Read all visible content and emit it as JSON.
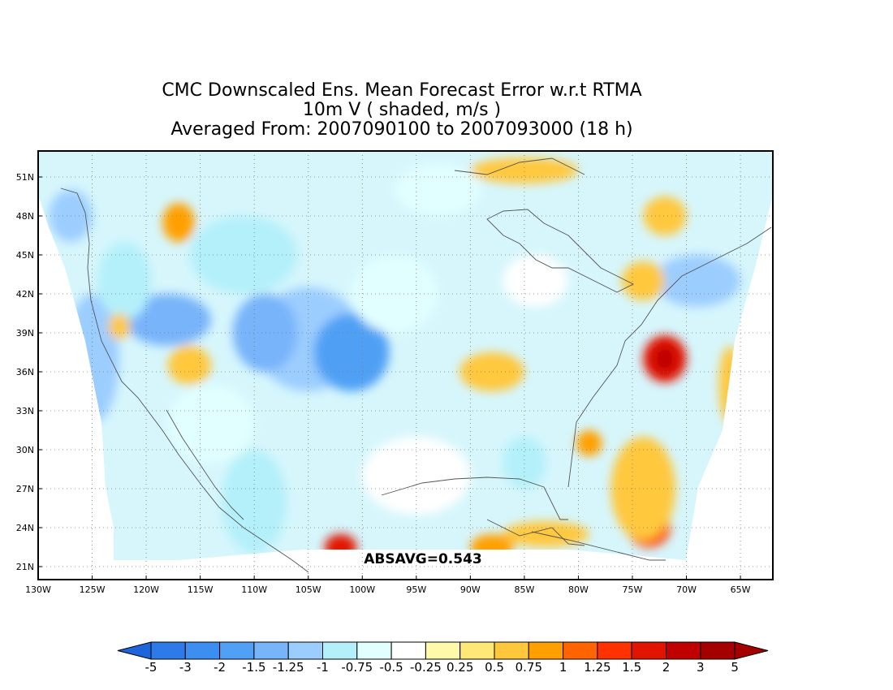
{
  "title": {
    "line1": "CMC Downscaled Ens. Mean Forecast Error w.r.t RTMA",
    "line2": "10m V ( shaded, m/s )",
    "line3": "Averaged From: 2007090100 to 2007093000 (18 h)"
  },
  "stat_label": "ABSAVG=0.543",
  "chart_data": {
    "type": "heatmap",
    "projection": "lat-lon",
    "xlim": [
      -130,
      -62
    ],
    "ylim": [
      20,
      53
    ],
    "grid": true,
    "grid_style": "dotted",
    "lon_ticks": [
      {
        "lon": -130,
        "label": "130W"
      },
      {
        "lon": -125,
        "label": "125W"
      },
      {
        "lon": -120,
        "label": "120W"
      },
      {
        "lon": -115,
        "label": "115W"
      },
      {
        "lon": -110,
        "label": "110W"
      },
      {
        "lon": -105,
        "label": "105W"
      },
      {
        "lon": -100,
        "label": "100W"
      },
      {
        "lon": -95,
        "label": "95W"
      },
      {
        "lon": -90,
        "label": "90W"
      },
      {
        "lon": -85,
        "label": "85W"
      },
      {
        "lon": -80,
        "label": "80W"
      },
      {
        "lon": -75,
        "label": "75W"
      },
      {
        "lon": -70,
        "label": "70W"
      },
      {
        "lon": -65,
        "label": "65W"
      }
    ],
    "lat_ticks": [
      {
        "lat": 21,
        "label": "21N"
      },
      {
        "lat": 24,
        "label": "24N"
      },
      {
        "lat": 27,
        "label": "27N"
      },
      {
        "lat": 30,
        "label": "30N"
      },
      {
        "lat": 33,
        "label": "33N"
      },
      {
        "lat": 36,
        "label": "36N"
      },
      {
        "lat": 39,
        "label": "39N"
      },
      {
        "lat": 42,
        "label": "42N"
      },
      {
        "lat": 45,
        "label": "45N"
      },
      {
        "lat": 48,
        "label": "48N"
      },
      {
        "lat": 51,
        "label": "51N"
      }
    ],
    "colorbar": {
      "levels": [
        "-5",
        "-3",
        "-2",
        "-1.5",
        "-1.25",
        "-1",
        "-0.75",
        "-0.5",
        "-0.25",
        "0.25",
        "0.5",
        "0.75",
        "1",
        "1.25",
        "1.5",
        "2",
        "3",
        "5"
      ],
      "colors": [
        "#1e64dc",
        "#2d7be8",
        "#3c8ef0",
        "#50a0f5",
        "#78b4fa",
        "#9ccdff",
        "#b4f0fa",
        "#e1ffff",
        "#ffffff",
        "#fffaaa",
        "#ffe878",
        "#ffc83c",
        "#ffa000",
        "#ff6400",
        "#ff3200",
        "#e11400",
        "#c00000",
        "#a50000"
      ],
      "under_color": "#1e64dc",
      "over_color": "#a50000"
    },
    "regions": [
      {
        "lon": -105,
        "lat": 38.5,
        "rx": 5,
        "ry": 4,
        "value": -1.25
      },
      {
        "lon": -101,
        "lat": 37.5,
        "rx": 3.5,
        "ry": 3,
        "value": -2
      },
      {
        "lon": -118,
        "lat": 40,
        "rx": 4,
        "ry": 2,
        "value": -1.5
      },
      {
        "lon": -109,
        "lat": 39,
        "rx": 3,
        "ry": 3,
        "value": -1.5
      },
      {
        "lon": -111,
        "lat": 45,
        "rx": 5,
        "ry": 3,
        "value": -1
      },
      {
        "lon": -125,
        "lat": 37,
        "rx": 2.5,
        "ry": 5,
        "value": -1.25
      },
      {
        "lon": -122,
        "lat": 43,
        "rx": 2.5,
        "ry": 3,
        "value": -1
      },
      {
        "lon": -127,
        "lat": 48,
        "rx": 2,
        "ry": 2,
        "value": -1.25
      },
      {
        "lon": -97,
        "lat": 42,
        "rx": 4,
        "ry": 3,
        "value": -0.75
      },
      {
        "lon": -114,
        "lat": 32,
        "rx": 4,
        "ry": 3,
        "value": -0.75
      },
      {
        "lon": -110,
        "lat": 26,
        "rx": 3,
        "ry": 4,
        "value": -1
      },
      {
        "lon": -93,
        "lat": 50,
        "rx": 4,
        "ry": 2,
        "value": -0.75
      },
      {
        "lon": -69,
        "lat": 43,
        "rx": 4,
        "ry": 2,
        "value": -1.25
      },
      {
        "lon": -84,
        "lat": 43,
        "rx": 3,
        "ry": 2,
        "value": -0.5
      },
      {
        "lon": -85,
        "lat": 29,
        "rx": 2,
        "ry": 2,
        "value": -1
      },
      {
        "lon": -95,
        "lat": 28,
        "rx": 5,
        "ry": 3,
        "value": -0.5
      },
      {
        "lon": -72,
        "lat": 37,
        "rx": 2,
        "ry": 1.8,
        "value": 1.5
      },
      {
        "lon": -72,
        "lat": 37,
        "rx": 1,
        "ry": 1,
        "value": 2
      },
      {
        "lon": -73.5,
        "lat": 24,
        "rx": 2,
        "ry": 1.5,
        "value": 1.25
      },
      {
        "lon": -74,
        "lat": 27,
        "rx": 3,
        "ry": 4,
        "value": 0.5
      },
      {
        "lon": -79,
        "lat": 30.5,
        "rx": 1.2,
        "ry": 1,
        "value": 0.75
      },
      {
        "lon": -102,
        "lat": 22.5,
        "rx": 1.5,
        "ry": 1,
        "value": 1.5
      },
      {
        "lon": -117,
        "lat": 47.5,
        "rx": 1.5,
        "ry": 1.5,
        "value": 0.75
      },
      {
        "lon": -116,
        "lat": 36.5,
        "rx": 2,
        "ry": 1.5,
        "value": 0.5
      },
      {
        "lon": -122.5,
        "lat": 39.5,
        "rx": 1,
        "ry": 1,
        "value": 0.5
      },
      {
        "lon": -72,
        "lat": 48,
        "rx": 2,
        "ry": 1.5,
        "value": 0.5
      },
      {
        "lon": -74,
        "lat": 43,
        "rx": 2,
        "ry": 1.5,
        "value": 0.5
      },
      {
        "lon": -88,
        "lat": 36,
        "rx": 3,
        "ry": 1.5,
        "value": 0.5
      },
      {
        "lon": -83,
        "lat": 23.5,
        "rx": 4,
        "ry": 1,
        "value": 0.5
      },
      {
        "lon": -85,
        "lat": 51.5,
        "rx": 5,
        "ry": 1,
        "value": 0.5
      },
      {
        "lon": -66,
        "lat": 35,
        "rx": 1,
        "ry": 3,
        "value": 0.5
      },
      {
        "lon": -88,
        "lat": 22.5,
        "rx": 2,
        "ry": 1,
        "value": 0.75
      }
    ]
  }
}
